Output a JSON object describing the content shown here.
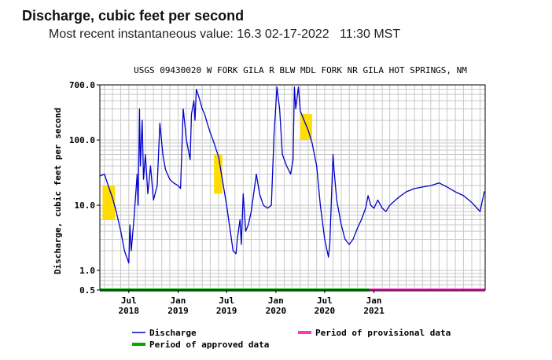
{
  "header": {
    "title": "Discharge, cubic feet per second",
    "subtitle": "Most recent instantaneous value: 16.3 02-17-2022   11:30 MST"
  },
  "chart_data": {
    "type": "line",
    "title": "USGS 09430020 W FORK GILA R BLW MDL FORK NR GILA HOT SPRINGS, NM",
    "ylabel": "Discharge, cubic feet per second",
    "xlabel": "",
    "y_scale": "log",
    "ylim": [
      0.5,
      700
    ],
    "xlim": [
      "2018-03-15",
      "2022-02-20"
    ],
    "grid": true,
    "legend_position": "bottom",
    "y_ticks": [
      {
        "label": "700.0",
        "value": 700
      },
      {
        "label": "100.0",
        "value": 100
      },
      {
        "label": "10.0",
        "value": 10
      },
      {
        "label": "1.0",
        "value": 1
      },
      {
        "label": "0.5",
        "value": 0.5
      }
    ],
    "x_ticks": [
      {
        "label1": "Jul",
        "label2": "2018",
        "date": "2018-07-01"
      },
      {
        "label1": "Jan",
        "label2": "2019",
        "date": "2019-01-01"
      },
      {
        "label1": "Jul",
        "label2": "2019",
        "date": "2019-07-01"
      },
      {
        "label1": "Jan",
        "label2": "2020",
        "date": "2020-01-01"
      },
      {
        "label1": "Jul",
        "label2": "2020",
        "date": "2020-07-01"
      },
      {
        "label1": "Jan",
        "label2": "2021",
        "date": "2021-01-01"
      }
    ],
    "series": [
      {
        "name": "Discharge",
        "color": "#0000cc",
        "points": [
          [
            "2018-03-15",
            28
          ],
          [
            "2018-04-01",
            30
          ],
          [
            "2018-04-15",
            20
          ],
          [
            "2018-05-01",
            13
          ],
          [
            "2018-05-15",
            8
          ],
          [
            "2018-06-01",
            4
          ],
          [
            "2018-06-15",
            2
          ],
          [
            "2018-07-01",
            1.3
          ],
          [
            "2018-07-05",
            5
          ],
          [
            "2018-07-10",
            2
          ],
          [
            "2018-07-20",
            6
          ],
          [
            "2018-08-01",
            30
          ],
          [
            "2018-08-05",
            10
          ],
          [
            "2018-08-10",
            300
          ],
          [
            "2018-08-13",
            40
          ],
          [
            "2018-08-20",
            200
          ],
          [
            "2018-08-25",
            25
          ],
          [
            "2018-09-01",
            60
          ],
          [
            "2018-09-10",
            15
          ],
          [
            "2018-09-20",
            40
          ],
          [
            "2018-10-01",
            12
          ],
          [
            "2018-10-15",
            20
          ],
          [
            "2018-10-25",
            180
          ],
          [
            "2018-11-05",
            60
          ],
          [
            "2018-11-15",
            35
          ],
          [
            "2018-12-01",
            25
          ],
          [
            "2018-12-15",
            22
          ],
          [
            "2019-01-01",
            20
          ],
          [
            "2019-01-10",
            18
          ],
          [
            "2019-01-20",
            300
          ],
          [
            "2019-02-01",
            100
          ],
          [
            "2019-02-15",
            50
          ],
          [
            "2019-02-20",
            250
          ],
          [
            "2019-03-01",
            400
          ],
          [
            "2019-03-05",
            200
          ],
          [
            "2019-03-10",
            600
          ],
          [
            "2019-03-20",
            450
          ],
          [
            "2019-04-01",
            300
          ],
          [
            "2019-04-10",
            250
          ],
          [
            "2019-04-20",
            180
          ],
          [
            "2019-05-01",
            130
          ],
          [
            "2019-05-15",
            90
          ],
          [
            "2019-06-01",
            55
          ],
          [
            "2019-06-15",
            25
          ],
          [
            "2019-07-01",
            10
          ],
          [
            "2019-07-15",
            4
          ],
          [
            "2019-07-25",
            2
          ],
          [
            "2019-08-05",
            1.8
          ],
          [
            "2019-08-10",
            3
          ],
          [
            "2019-08-20",
            6
          ],
          [
            "2019-08-25",
            2.5
          ],
          [
            "2019-09-01",
            15
          ],
          [
            "2019-09-10",
            4
          ],
          [
            "2019-09-20",
            5
          ],
          [
            "2019-10-01",
            8
          ],
          [
            "2019-10-10",
            15
          ],
          [
            "2019-10-20",
            30
          ],
          [
            "2019-11-01",
            15
          ],
          [
            "2019-11-15",
            10
          ],
          [
            "2019-12-01",
            9
          ],
          [
            "2019-12-15",
            10
          ],
          [
            "2019-12-25",
            120
          ],
          [
            "2020-01-05",
            650
          ],
          [
            "2020-01-15",
            300
          ],
          [
            "2020-01-25",
            60
          ],
          [
            "2020-02-10",
            40
          ],
          [
            "2020-02-25",
            30
          ],
          [
            "2020-03-05",
            50
          ],
          [
            "2020-03-10",
            650
          ],
          [
            "2020-03-15",
            300
          ],
          [
            "2020-03-25",
            650
          ],
          [
            "2020-04-01",
            280
          ],
          [
            "2020-04-15",
            200
          ],
          [
            "2020-05-01",
            140
          ],
          [
            "2020-05-15",
            90
          ],
          [
            "2020-06-01",
            40
          ],
          [
            "2020-06-15",
            10
          ],
          [
            "2020-07-01",
            3
          ],
          [
            "2020-07-15",
            1.6
          ],
          [
            "2020-07-20",
            2.5
          ],
          [
            "2020-08-01",
            60
          ],
          [
            "2020-08-05",
            35
          ],
          [
            "2020-08-15",
            12
          ],
          [
            "2020-09-01",
            5
          ],
          [
            "2020-09-15",
            3
          ],
          [
            "2020-10-01",
            2.5
          ],
          [
            "2020-10-15",
            3
          ],
          [
            "2020-11-01",
            4.5
          ],
          [
            "2020-11-15",
            6
          ],
          [
            "2020-12-01",
            9
          ],
          [
            "2020-12-10",
            14
          ],
          [
            "2020-12-20",
            10
          ],
          [
            "2021-01-01",
            9
          ],
          [
            "2021-01-15",
            12
          ],
          [
            "2021-02-01",
            9
          ],
          [
            "2021-02-15",
            8
          ],
          [
            "2021-03-01",
            10
          ],
          [
            "2021-04-01",
            13
          ],
          [
            "2021-05-01",
            16
          ],
          [
            "2021-06-01",
            18
          ],
          [
            "2021-07-01",
            19
          ],
          [
            "2021-08-01",
            20
          ],
          [
            "2021-09-01",
            22
          ],
          [
            "2021-10-01",
            19
          ],
          [
            "2021-11-01",
            16
          ],
          [
            "2021-12-01",
            14
          ],
          [
            "2022-01-01",
            11
          ],
          [
            "2022-02-01",
            8
          ],
          [
            "2022-02-17",
            16.3
          ]
        ]
      },
      {
        "name": "Period of approved data",
        "color": "#00aa00",
        "range": [
          "2018-03-15",
          "2020-12-15"
        ]
      },
      {
        "name": "Period of provisional data",
        "color": "#ff33cc",
        "range": [
          "2020-12-15",
          "2022-02-20"
        ]
      }
    ],
    "ice_affected_periods": {
      "color": "#ffdd00",
      "periods": [
        {
          "start": "2018-03-25",
          "end": "2018-05-10",
          "ymin": 6,
          "ymax": 20
        },
        {
          "start": "2019-05-15",
          "end": "2019-06-15",
          "ymin": 15,
          "ymax": 60
        },
        {
          "start": "2020-04-01",
          "end": "2020-05-15",
          "ymin": 100,
          "ymax": 250
        }
      ]
    }
  }
}
